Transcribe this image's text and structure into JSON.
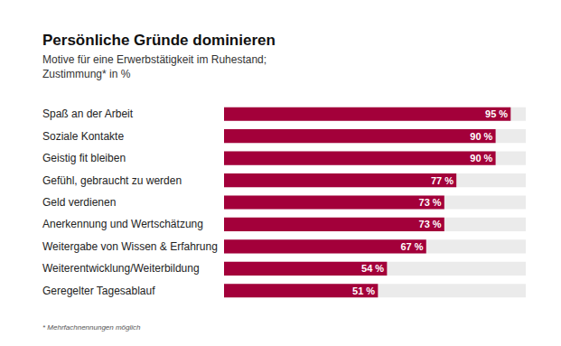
{
  "chart_data": {
    "type": "bar",
    "orientation": "horizontal",
    "title": "Persönliche Gründe dominieren",
    "subtitle": "Motive für eine Erwerbstätigkeit im Ruhestand; Zustimmung* in %",
    "footnote": "* Mehrfachnennungen möglich",
    "categories": [
      "Spaß an der Arbeit",
      "Soziale Kontakte",
      "Geistig fit bleiben",
      "Gefühl, gebraucht zu werden",
      "Geld verdienen",
      "Anerkennung und Wertschätzung",
      "Weitergabe von Wissen & Erfahrung",
      "Weiterentwicklung/Weiterbildung",
      "Geregelter Tagesablauf"
    ],
    "values": [
      95,
      90,
      90,
      77,
      73,
      73,
      67,
      54,
      51
    ],
    "value_labels": [
      "95 %",
      "90 %",
      "90 %",
      "77 %",
      "73 %",
      "73 %",
      "67 %",
      "54 %",
      "51 %"
    ],
    "color": "#a3003a",
    "xlim": [
      0,
      100
    ],
    "grid": false,
    "data_labels": true,
    "tick_labels": "y"
  }
}
